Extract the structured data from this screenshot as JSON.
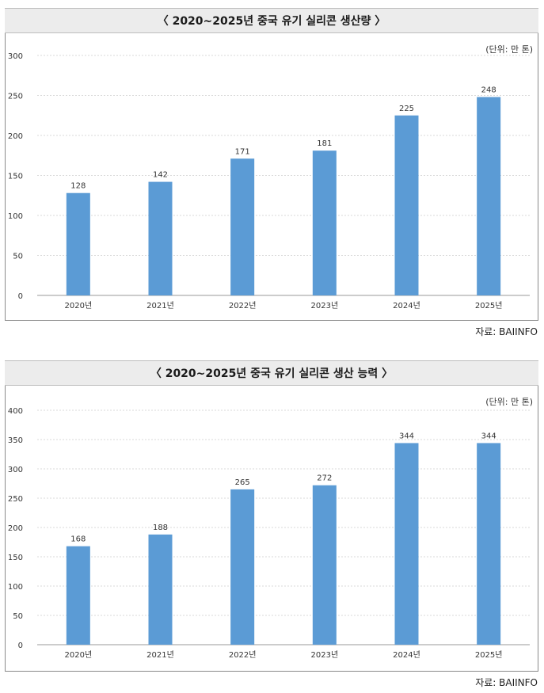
{
  "chart_data": [
    {
      "type": "bar",
      "title": "〈 2020~2025년 중국 유기 실리콘 생산량 〉",
      "unit": "(단위: 만 톤)",
      "categories": [
        "2020년",
        "2021년",
        "2022년",
        "2023년",
        "2024년",
        "2025년"
      ],
      "values": [
        128,
        142,
        171,
        181,
        225,
        248
      ],
      "ylim": [
        0,
        300
      ],
      "yticks": [
        0,
        50,
        100,
        150,
        200,
        250,
        300
      ],
      "bar_color": "#5b9bd5",
      "grid": true,
      "source": "자료: BAIINFO"
    },
    {
      "type": "bar",
      "title": "〈 2020~2025년 중국 유기 실리콘 생산 능력 〉",
      "unit": "(단위: 만 톤)",
      "categories": [
        "2020년",
        "2021년",
        "2022년",
        "2023년",
        "2024년",
        "2025년"
      ],
      "values": [
        168,
        188,
        265,
        272,
        344,
        344
      ],
      "ylim": [
        0,
        400
      ],
      "yticks": [
        0,
        50,
        100,
        150,
        200,
        250,
        300,
        350,
        400
      ],
      "bar_color": "#5b9bd5",
      "grid": true,
      "source": "자료: BAIINFO"
    }
  ]
}
